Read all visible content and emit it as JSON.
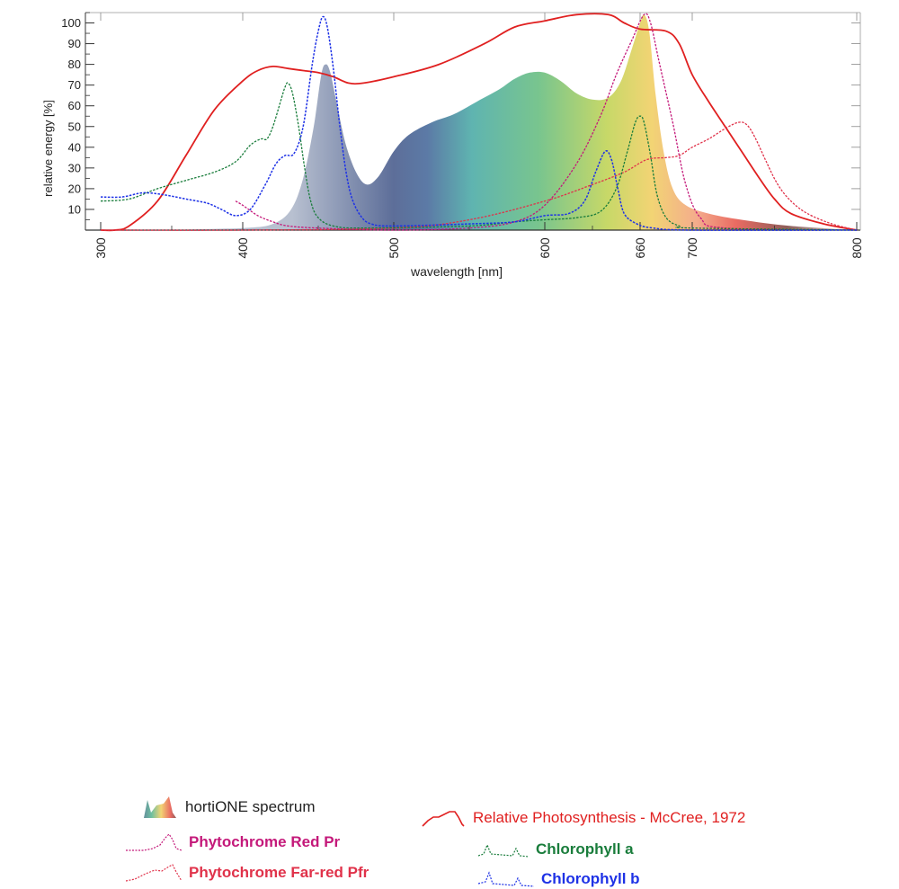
{
  "colors": {
    "mccree": "#e02020",
    "pr": "#c4197a",
    "pfr": "#e0324a",
    "chla": "#1a7d3c",
    "chlb": "#1e32e6",
    "axis": "#333333"
  },
  "legend": {
    "hortione": "hortiONE spectrum",
    "pr": "Phytochrome Red Pr",
    "pfr": "Phytochrome Far-red Pfr",
    "mccree": "Relative Photosynthesis - McCree, 1972",
    "chla": "Chlorophyll a",
    "chlb": "Chlorophyll b"
  },
  "chart_data": {
    "type": "line",
    "title": "",
    "xlabel": "wavelength [nm]",
    "ylabel": "relative energy [%]",
    "xlim": [
      300,
      800
    ],
    "ylim": [
      0,
      105
    ],
    "grid": false,
    "x_ticks": [
      300,
      400,
      500,
      600,
      660,
      700,
      800
    ],
    "y_ticks": [
      10,
      20,
      30,
      40,
      50,
      60,
      70,
      80,
      90,
      100
    ],
    "series": [
      {
        "name": "hortiONE spectrum",
        "style": "filled-gradient",
        "points": [
          [
            345,
            0
          ],
          [
            400,
            1
          ],
          [
            420,
            3
          ],
          [
            432,
            10
          ],
          [
            440,
            25
          ],
          [
            447,
            50
          ],
          [
            452,
            75
          ],
          [
            455,
            80
          ],
          [
            458,
            76
          ],
          [
            462,
            62
          ],
          [
            468,
            42
          ],
          [
            475,
            28
          ],
          [
            482,
            22
          ],
          [
            490,
            26
          ],
          [
            500,
            38
          ],
          [
            510,
            46
          ],
          [
            525,
            52
          ],
          [
            540,
            56
          ],
          [
            555,
            62
          ],
          [
            570,
            68
          ],
          [
            580,
            73
          ],
          [
            590,
            76
          ],
          [
            600,
            76
          ],
          [
            610,
            72
          ],
          [
            620,
            66
          ],
          [
            630,
            63
          ],
          [
            640,
            64
          ],
          [
            648,
            72
          ],
          [
            655,
            88
          ],
          [
            660,
            100
          ],
          [
            663,
            104
          ],
          [
            667,
            96
          ],
          [
            672,
            65
          ],
          [
            678,
            38
          ],
          [
            685,
            20
          ],
          [
            695,
            12
          ],
          [
            710,
            8
          ],
          [
            730,
            5
          ],
          [
            760,
            2
          ],
          [
            800,
            0
          ]
        ]
      },
      {
        "name": "Relative Photosynthesis - McCree, 1972",
        "points": [
          [
            300,
            0
          ],
          [
            310,
            0
          ],
          [
            320,
            2
          ],
          [
            340,
            14
          ],
          [
            360,
            36
          ],
          [
            380,
            58
          ],
          [
            400,
            72
          ],
          [
            410,
            77
          ],
          [
            420,
            79
          ],
          [
            430,
            78
          ],
          [
            440,
            77
          ],
          [
            450,
            76
          ],
          [
            460,
            74
          ],
          [
            470,
            71
          ],
          [
            480,
            71
          ],
          [
            500,
            74
          ],
          [
            530,
            80
          ],
          [
            560,
            90
          ],
          [
            580,
            98
          ],
          [
            600,
            101
          ],
          [
            620,
            104
          ],
          [
            640,
            104
          ],
          [
            650,
            100
          ],
          [
            660,
            97
          ],
          [
            680,
            96
          ],
          [
            690,
            90
          ],
          [
            700,
            75
          ],
          [
            710,
            62
          ],
          [
            720,
            50
          ],
          [
            730,
            38
          ],
          [
            740,
            26
          ],
          [
            750,
            15
          ],
          [
            760,
            8
          ],
          [
            780,
            3
          ],
          [
            800,
            0
          ]
        ]
      },
      {
        "name": "Phytochrome Red Pr",
        "points": [
          [
            395,
            14
          ],
          [
            400,
            12
          ],
          [
            410,
            7
          ],
          [
            420,
            4
          ],
          [
            430,
            2
          ],
          [
            450,
            1
          ],
          [
            500,
            0
          ],
          [
            550,
            1
          ],
          [
            580,
            4
          ],
          [
            600,
            12
          ],
          [
            620,
            32
          ],
          [
            635,
            55
          ],
          [
            645,
            75
          ],
          [
            655,
            92
          ],
          [
            663,
            104
          ],
          [
            668,
            100
          ],
          [
            675,
            80
          ],
          [
            685,
            52
          ],
          [
            695,
            22
          ],
          [
            705,
            6
          ],
          [
            720,
            1
          ],
          [
            800,
            0
          ]
        ]
      },
      {
        "name": "Phytochrome Far-red Pfr",
        "points": [
          [
            300,
            0
          ],
          [
            400,
            0
          ],
          [
            500,
            1
          ],
          [
            550,
            5
          ],
          [
            600,
            14
          ],
          [
            630,
            22
          ],
          [
            650,
            28
          ],
          [
            665,
            34
          ],
          [
            680,
            35
          ],
          [
            690,
            36
          ],
          [
            700,
            40
          ],
          [
            710,
            44
          ],
          [
            720,
            49
          ],
          [
            728,
            52
          ],
          [
            733,
            51
          ],
          [
            738,
            45
          ],
          [
            745,
            33
          ],
          [
            752,
            22
          ],
          [
            760,
            14
          ],
          [
            770,
            8
          ],
          [
            785,
            3
          ],
          [
            800,
            0
          ]
        ]
      },
      {
        "name": "Chlorophyll a",
        "points": [
          [
            300,
            14
          ],
          [
            320,
            15
          ],
          [
            340,
            20
          ],
          [
            360,
            24
          ],
          [
            380,
            28
          ],
          [
            395,
            33
          ],
          [
            405,
            41
          ],
          [
            412,
            44
          ],
          [
            416,
            44
          ],
          [
            420,
            50
          ],
          [
            425,
            62
          ],
          [
            428,
            69
          ],
          [
            430,
            71
          ],
          [
            433,
            66
          ],
          [
            437,
            50
          ],
          [
            441,
            30
          ],
          [
            445,
            14
          ],
          [
            450,
            6
          ],
          [
            460,
            2
          ],
          [
            480,
            1
          ],
          [
            550,
            2
          ],
          [
            580,
            4
          ],
          [
            600,
            5
          ],
          [
            620,
            6
          ],
          [
            635,
            9
          ],
          [
            645,
            20
          ],
          [
            652,
            38
          ],
          [
            657,
            52
          ],
          [
            660,
            55
          ],
          [
            663,
            52
          ],
          [
            668,
            36
          ],
          [
            673,
            17
          ],
          [
            680,
            6
          ],
          [
            690,
            2
          ],
          [
            700,
            1
          ],
          [
            800,
            0
          ]
        ]
      },
      {
        "name": "Chlorophyll b",
        "points": [
          [
            300,
            16
          ],
          [
            315,
            16
          ],
          [
            330,
            18
          ],
          [
            345,
            17
          ],
          [
            360,
            15
          ],
          [
            375,
            13
          ],
          [
            385,
            10
          ],
          [
            395,
            7
          ],
          [
            405,
            10
          ],
          [
            415,
            22
          ],
          [
            422,
            32
          ],
          [
            428,
            36
          ],
          [
            434,
            37
          ],
          [
            440,
            50
          ],
          [
            446,
            80
          ],
          [
            450,
            96
          ],
          [
            453,
            103
          ],
          [
            456,
            98
          ],
          [
            460,
            78
          ],
          [
            464,
            52
          ],
          [
            468,
            30
          ],
          [
            472,
            16
          ],
          [
            478,
            7
          ],
          [
            485,
            3
          ],
          [
            500,
            2
          ],
          [
            550,
            3
          ],
          [
            580,
            4
          ],
          [
            600,
            7
          ],
          [
            615,
            8
          ],
          [
            625,
            14
          ],
          [
            632,
            28
          ],
          [
            638,
            38
          ],
          [
            642,
            34
          ],
          [
            646,
            20
          ],
          [
            650,
            8
          ],
          [
            658,
            3
          ],
          [
            670,
            1
          ],
          [
            700,
            0
          ],
          [
            800,
            0
          ]
        ]
      }
    ]
  }
}
